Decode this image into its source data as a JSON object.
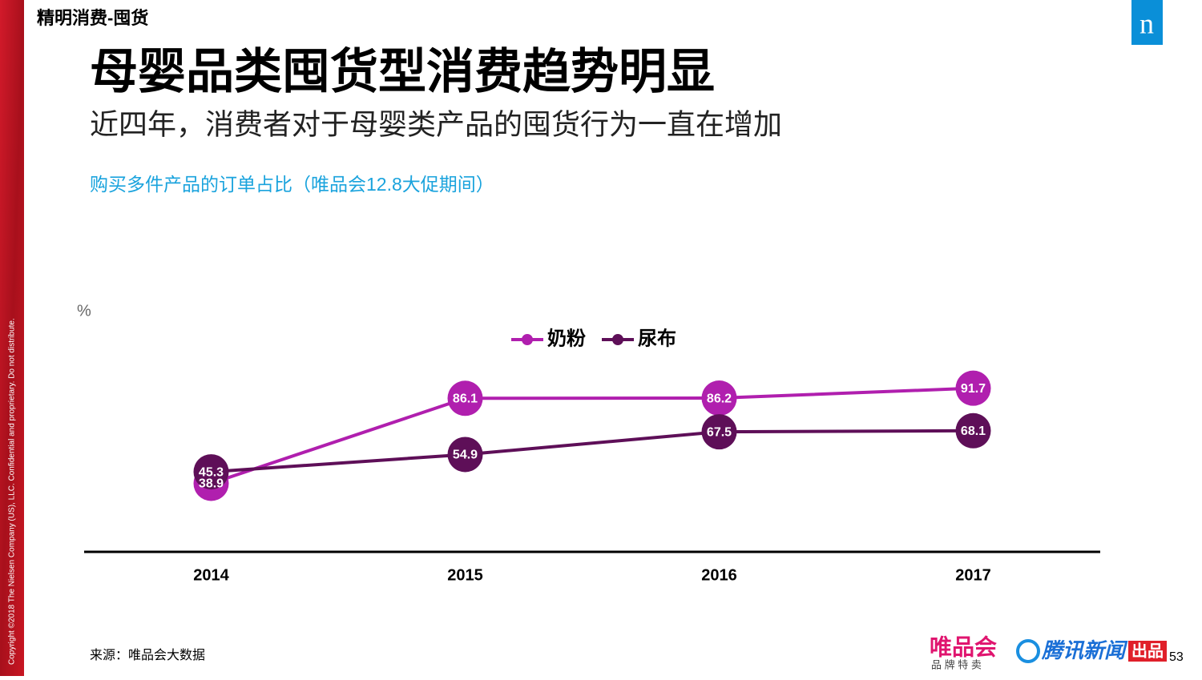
{
  "slide": {
    "section": "精明消费-囤货",
    "headline": "母婴品类囤货型消费趋势明显",
    "subheadline": "近四年，消费者对于母婴类产品的囤货行为一直在增加",
    "chart_caption": "购买多件产品的订单占比（唯品会12.8大促期间）",
    "copyright": "Copyright ©2018 The Nielsen Company (US), LLC. Confidential and proprietary. Do not distribute.",
    "logo": "n",
    "source": "来源：唯品会大数据",
    "brand1": "唯品会",
    "brand1_sub": "品 牌 特 卖",
    "brand2": "腾讯新闻",
    "brand2_tag": "出品",
    "page": "53"
  },
  "chart_data": {
    "type": "line",
    "y_label": "%",
    "categories": [
      "2014",
      "2015",
      "2016",
      "2017"
    ],
    "ylim": [
      0,
      100
    ],
    "series": [
      {
        "name": "奶粉",
        "color": "#b01fae",
        "values": [
          38.9,
          86.1,
          86.2,
          91.7
        ]
      },
      {
        "name": "尿布",
        "color": "#5e0f58",
        "values": [
          45.3,
          54.9,
          67.5,
          68.1
        ]
      }
    ]
  }
}
